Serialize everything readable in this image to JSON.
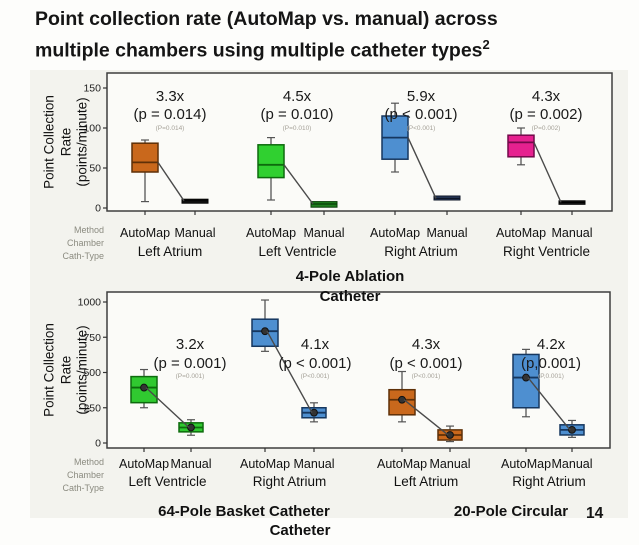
{
  "slide": {
    "title_line1": "Point collection rate (AutoMap vs. manual) across",
    "title_line2": "multiple chambers using multiple catheter types",
    "title_sup": "2",
    "page_number": "14"
  },
  "chart_data": [
    {
      "type": "boxplot",
      "panel": "4-Pole Ablation Catheter",
      "catheter_line1": "4-Pole Ablation",
      "catheter_line2": "Catheter",
      "ylabel": "Point Collection Rate (points/minute)",
      "ylabel_lines": [
        "Point Collection",
        "Rate",
        "(points/minute)"
      ],
      "ylim": [
        0,
        150
      ],
      "yticks": [
        0,
        50,
        100,
        150
      ],
      "ytick_labels": [
        "0",
        "50",
        "100",
        "150"
      ],
      "row_labels": [
        "Method",
        "Chamber",
        "Cath-Type"
      ],
      "grid": "off",
      "groups": [
        {
          "chamber": "Left Atrium",
          "method_labels": [
            "AutoMap",
            "Manual"
          ],
          "ratio": "3.3x",
          "p_label": "(p = 0.014)",
          "p_sub": "(P=0.014)",
          "color": "#C9681C",
          "border": "#5E3008",
          "manual_color": "#161616",
          "manual_border": "#000000",
          "automap": {
            "whislo": 8,
            "q1": 45,
            "med": 57,
            "q3": 81,
            "whishi": 85
          },
          "manual": {
            "whislo": 6,
            "q1": 6,
            "med": 9,
            "q3": 11,
            "whishi": 11
          }
        },
        {
          "chamber": "Left Ventricle",
          "method_labels": [
            "AutoMap",
            "Manual"
          ],
          "ratio": "4.5x",
          "p_label": "(p = 0.010)",
          "p_sub": "(P=0.010)",
          "color": "#30D030",
          "border": "#0D6B0D",
          "manual_color": "#1F7F1F",
          "manual_border": "#073D07",
          "automap": {
            "whislo": 10,
            "q1": 38,
            "med": 54,
            "q3": 79,
            "whishi": 88
          },
          "manual": {
            "whislo": 1,
            "q1": 1,
            "med": 5,
            "q3": 8,
            "whishi": 8
          }
        },
        {
          "chamber": "Right Atrium",
          "method_labels": [
            "AutoMap",
            "Manual"
          ],
          "ratio": "5.9x",
          "p_label": "(p < 0.001)",
          "p_sub": "(P<0.001)",
          "color": "#4E8FD0",
          "border": "#16375F",
          "manual_color": "#2A3C5E",
          "manual_border": "#0D1526",
          "automap": {
            "whislo": 45,
            "q1": 61,
            "med": 88,
            "q3": 115,
            "whishi": 131
          },
          "manual": {
            "whislo": 10,
            "q1": 10,
            "med": 12,
            "q3": 15,
            "whishi": 15
          }
        },
        {
          "chamber": "Right Ventricle",
          "method_labels": [
            "AutoMap",
            "Manual"
          ],
          "ratio": "4.3x",
          "p_label": "(p = 0.002)",
          "p_sub": "(P=0.002)",
          "color": "#E6218F",
          "border": "#73094A",
          "manual_color": "#161616",
          "manual_border": "#000000",
          "automap": {
            "whislo": 54,
            "q1": 64,
            "med": 82,
            "q3": 91,
            "whishi": 100
          },
          "manual": {
            "whislo": 5,
            "q1": 5,
            "med": 7,
            "q3": 9,
            "whishi": 9
          }
        }
      ]
    },
    {
      "type": "boxplot",
      "panel": "64-Pole Basket Catheter / 20-Pole Circular Catheter",
      "catheter_left": "64-Pole Basket Catheter",
      "catheter_right": "20-Pole Circular",
      "catheter_line2": "Catheter",
      "ylabel": "Point Collection Rate (points/minute)",
      "ylabel_lines": [
        "Point Collection",
        "Rate",
        "(points/minute)"
      ],
      "ylim": [
        0,
        1000
      ],
      "yticks": [
        0,
        250,
        500,
        750,
        1000
      ],
      "ytick_labels": [
        "0",
        "250",
        "500",
        "750",
        "1000"
      ],
      "row_labels": [
        "Method",
        "Chamber",
        "Cath-Type"
      ],
      "grid": "off",
      "groups": [
        {
          "chamber": "Left Ventricle",
          "method_labels": [
            "AutoMap",
            "Manual"
          ],
          "ratio": "3.2x",
          "p_label": "(p = 0.001)",
          "p_sub": "(P=0.001)",
          "color": "#30C930",
          "border": "#0D6B0D",
          "manual_color": "#30C930",
          "manual_border": "#0D6B0D",
          "automap": {
            "whislo": 250,
            "q1": 286,
            "med": 393,
            "q3": 471,
            "whishi": 521
          },
          "manual": {
            "whislo": 55,
            "q1": 79,
            "med": 110,
            "q3": 143,
            "whishi": 165
          }
        },
        {
          "chamber": "Right Atrium",
          "method_labels": [
            "AutoMap",
            "Manual"
          ],
          "ratio": "4.1x",
          "p_label": "(p < 0.001)",
          "p_sub": "(P<0.001)",
          "color": "#4E8FD0",
          "border": "#16375F",
          "manual_color": "#4E8FD0",
          "manual_border": "#16375F",
          "automap": {
            "whislo": 650,
            "q1": 686,
            "med": 793,
            "q3": 878,
            "whishi": 1014
          },
          "manual": {
            "whislo": 150,
            "q1": 179,
            "med": 215,
            "q3": 250,
            "whishi": 285
          }
        },
        {
          "chamber": "Left Atrium",
          "method_labels": [
            "AutoMap",
            "Manual"
          ],
          "ratio": "4.3x",
          "p_label": "(p < 0.001)",
          "p_sub": "(P<0.001)",
          "color": "#C9681C",
          "border": "#5E3008",
          "manual_color": "#C9681C",
          "manual_border": "#5E3008",
          "automap": {
            "whislo": 150,
            "q1": 200,
            "med": 307,
            "q3": 378,
            "whishi": 507
          },
          "manual": {
            "whislo": 10,
            "q1": 21,
            "med": 57,
            "q3": 93,
            "whishi": 120
          }
        },
        {
          "chamber": "Right Atrium",
          "method_labels": [
            "AutoMap",
            "Manual"
          ],
          "ratio": "4.2x",
          "p_label": "(p,0.001)",
          "p_sub": "(P,0.001)",
          "color": "#4E8FD0",
          "border": "#16375F",
          "manual_color": "#4E8FD0",
          "manual_border": "#16375F",
          "automap": {
            "whislo": 186,
            "q1": 250,
            "med": 464,
            "q3": 628,
            "whishi": 664
          },
          "manual": {
            "whislo": 40,
            "q1": 57,
            "med": 93,
            "q3": 129,
            "whishi": 160
          }
        }
      ]
    }
  ]
}
